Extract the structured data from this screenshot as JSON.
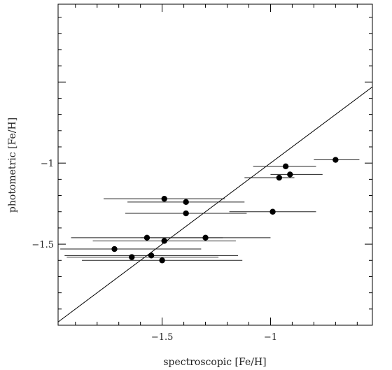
{
  "chart_data": {
    "type": "scatter",
    "xlabel": "spectroscopic [Fe/H]",
    "ylabel": "photometric [Fe/H]",
    "xlim": [
      -1.98,
      -0.53
    ],
    "ylim": [
      -2.0,
      -0.02
    ],
    "x_ticks": [
      -1.5,
      -1
    ],
    "y_ticks": [
      -1.5,
      -1
    ],
    "x_tick_labels": [
      "-1.5",
      "-1"
    ],
    "y_tick_labels": [
      "-1.5",
      "-1"
    ],
    "reference_line": "one-to-one (y = x)",
    "grid": false,
    "points": [
      {
        "x": -0.7,
        "y": -0.98,
        "xerr_low": 0.1,
        "xerr_high": 0.11
      },
      {
        "x": -0.93,
        "y": -1.02,
        "xerr_low": 0.15,
        "xerr_high": 0.14
      },
      {
        "x": -0.91,
        "y": -1.07,
        "xerr_low": 0.09,
        "xerr_high": 0.15
      },
      {
        "x": -0.96,
        "y": -1.09,
        "xerr_low": 0.16,
        "xerr_high": 0.07
      },
      {
        "x": -1.49,
        "y": -1.22,
        "xerr_low": 0.28,
        "xerr_high": 0.28
      },
      {
        "x": -1.39,
        "y": -1.24,
        "xerr_low": 0.27,
        "xerr_high": 0.27
      },
      {
        "x": -1.39,
        "y": -1.31,
        "xerr_low": 0.28,
        "xerr_high": 0.28
      },
      {
        "x": -0.99,
        "y": -1.3,
        "xerr_low": 0.2,
        "xerr_high": 0.2
      },
      {
        "x": -1.57,
        "y": -1.46,
        "xerr_low": 0.35,
        "xerr_high": 0.35
      },
      {
        "x": -1.3,
        "y": -1.46,
        "xerr_low": 0.3,
        "xerr_high": 0.3
      },
      {
        "x": -1.49,
        "y": -1.48,
        "xerr_low": 0.33,
        "xerr_high": 0.33
      },
      {
        "x": -1.72,
        "y": -1.53,
        "xerr_low": 0.25,
        "xerr_high": 0.4
      },
      {
        "x": -1.64,
        "y": -1.58,
        "xerr_low": 0.3,
        "xerr_high": 0.4
      },
      {
        "x": -1.55,
        "y": -1.57,
        "xerr_low": 0.4,
        "xerr_high": 0.4
      },
      {
        "x": -1.5,
        "y": -1.6,
        "xerr_low": 0.37,
        "xerr_high": 0.37
      }
    ],
    "colors": {
      "markers": "#000000",
      "error_bars": "#222222",
      "axes": "#000000"
    }
  }
}
